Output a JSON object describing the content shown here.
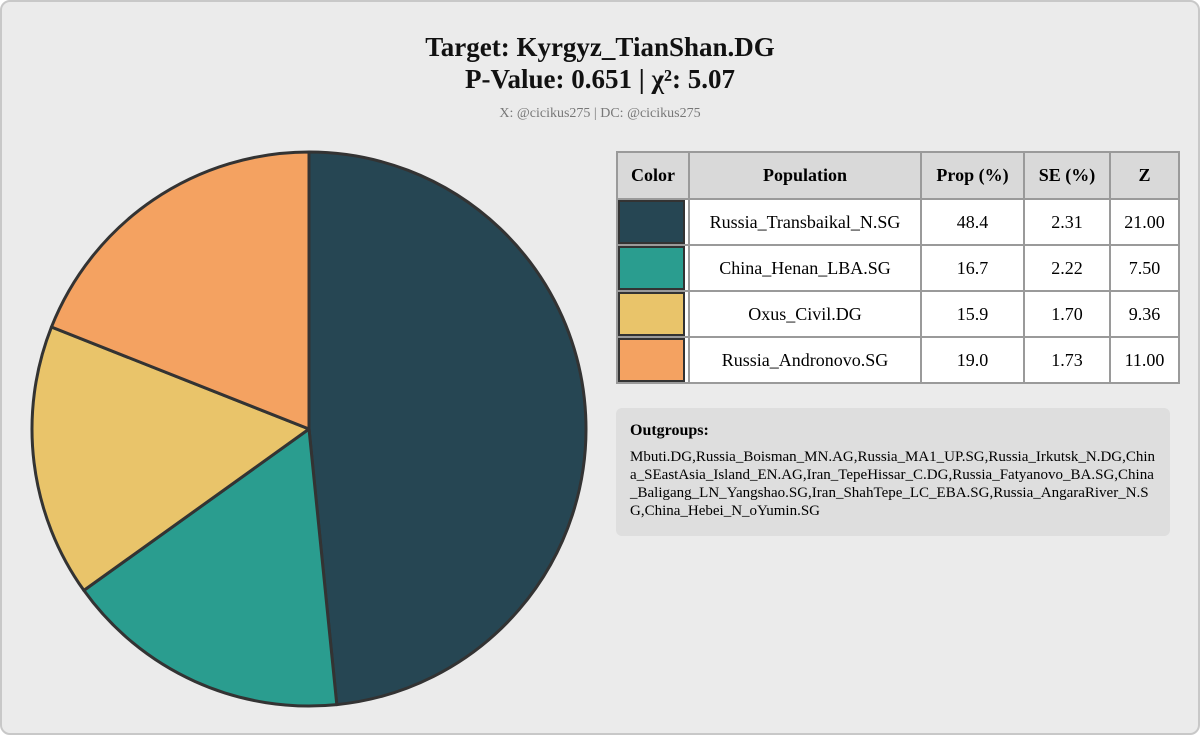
{
  "chart_data": {
    "type": "pie",
    "title": "Target: Kyrgyz_TianShan.DG",
    "subtitle": "P-Value: 0.651 | χ²: 5.07",
    "credit": "X: @cicikus275 | DC: @cicikus275",
    "categories": [
      "Russia_Transbaikal_N.SG",
      "China_Henan_LBA.SG",
      "Oxus_Civil.DG",
      "Russia_Andronovo.SG"
    ],
    "values": [
      48.4,
      16.7,
      15.9,
      19.0
    ],
    "value_labels": [
      "48.4",
      "16.7",
      "15.9",
      "19.0"
    ],
    "colors": [
      "#264653",
      "#2a9d8f",
      "#e9c46a",
      "#f4a261"
    ]
  },
  "table": {
    "headers": [
      "Color",
      "Population",
      "Prop (%)",
      "SE (%)",
      "Z"
    ],
    "se": [
      "2.31",
      "2.22",
      "1.70",
      "1.73"
    ],
    "z": [
      "21.00",
      "7.50",
      "9.36",
      "11.00"
    ]
  },
  "outgroups": {
    "label": "Outgroups:",
    "text": "Mbuti.DG,Russia_Boisman_MN.AG,Russia_MA1_UP.SG,Russia_Irkutsk_N.DG,China_SEastAsia_Island_EN.AG,Iran_TepeHissar_C.DG,Russia_Fatyanovo_BA.SG,China_Baligang_LN_Yangshao.SG,Iran_ShahTepe_LC_EBA.SG,Russia_AngaraRiver_N.SG,China_Hebei_N_oYumin.SG"
  }
}
